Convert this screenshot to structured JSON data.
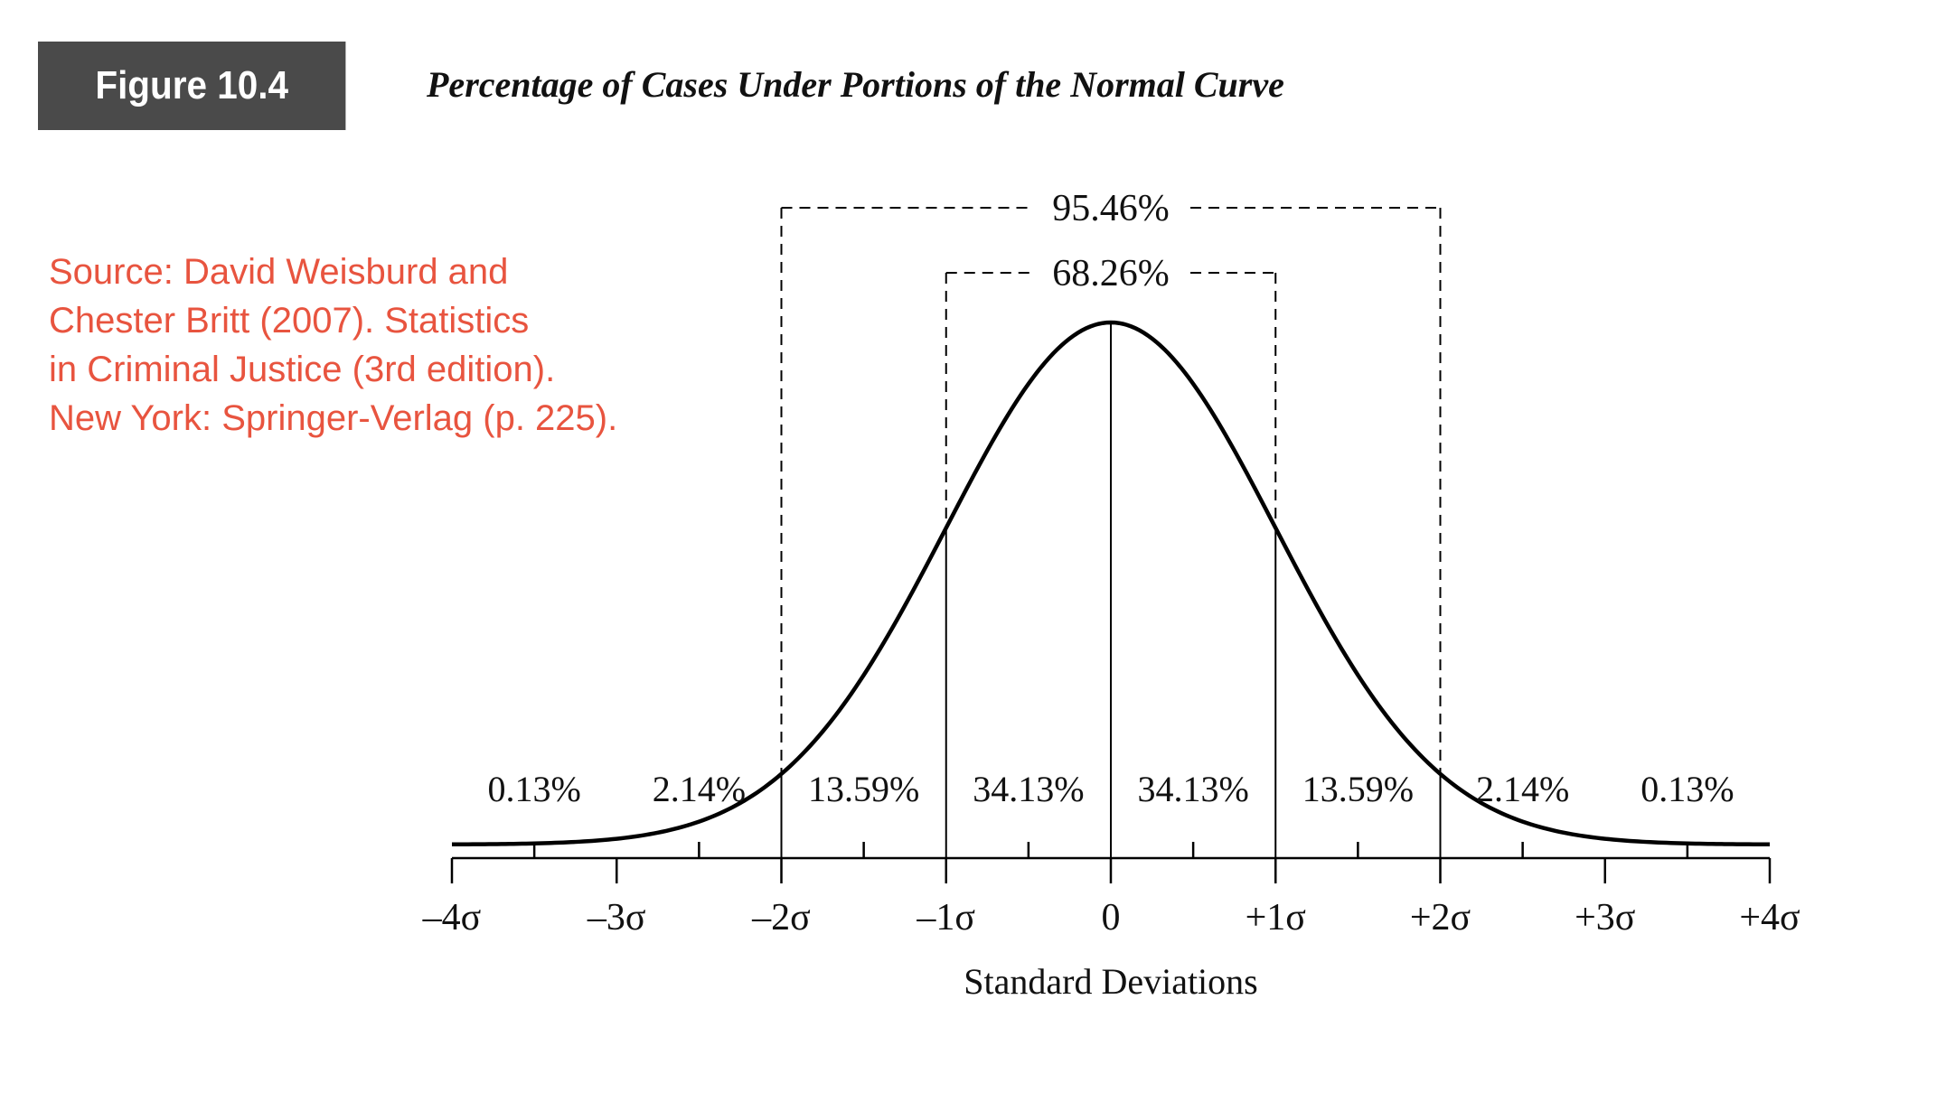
{
  "header": {
    "figure_label": "Figure 10.4",
    "title": "Percentage of Cases Under Portions of the Normal Curve"
  },
  "source": {
    "lines": [
      "Source: David Weisburd and",
      "Chester Britt (2007). Statistics",
      "in Criminal Justice (3rd edition).",
      "New York: Springer-Verlag (p. 225)."
    ],
    "color": "#e8543f"
  },
  "chart_data": {
    "type": "area",
    "curve": "normal-density",
    "title": "Percentage of Cases Under Portions of the Normal Curve",
    "xlabel": "Standard Deviations",
    "ylabel": "",
    "xlim": [
      -4,
      4
    ],
    "grid": false,
    "ticks": {
      "major": [
        -4,
        -3,
        -2,
        -1,
        0,
        1,
        2,
        3,
        4
      ],
      "minor": [
        -3.5,
        -2.5,
        -1.5,
        -0.5,
        0.5,
        1.5,
        2.5,
        3.5
      ],
      "labels": [
        "–4σ",
        "–3σ",
        "–2σ",
        "–1σ",
        "0",
        "+1σ",
        "+2σ",
        "+3σ",
        "+4σ"
      ]
    },
    "dividers": [
      -2,
      -1,
      0,
      1,
      2
    ],
    "segments": [
      {
        "x": -3.5,
        "label": "0.13%"
      },
      {
        "x": -2.5,
        "label": "2.14%"
      },
      {
        "x": -1.5,
        "label": "13.59%"
      },
      {
        "x": -0.5,
        "label": "34.13%"
      },
      {
        "x": 0.5,
        "label": "34.13%"
      },
      {
        "x": 1.5,
        "label": "13.59%"
      },
      {
        "x": 2.5,
        "label": "2.14%"
      },
      {
        "x": 3.5,
        "label": "0.13%"
      }
    ],
    "brackets": [
      {
        "from": -2,
        "to": 2,
        "label": "95.46%"
      },
      {
        "from": -1,
        "to": 1,
        "label": "68.26%"
      }
    ]
  }
}
